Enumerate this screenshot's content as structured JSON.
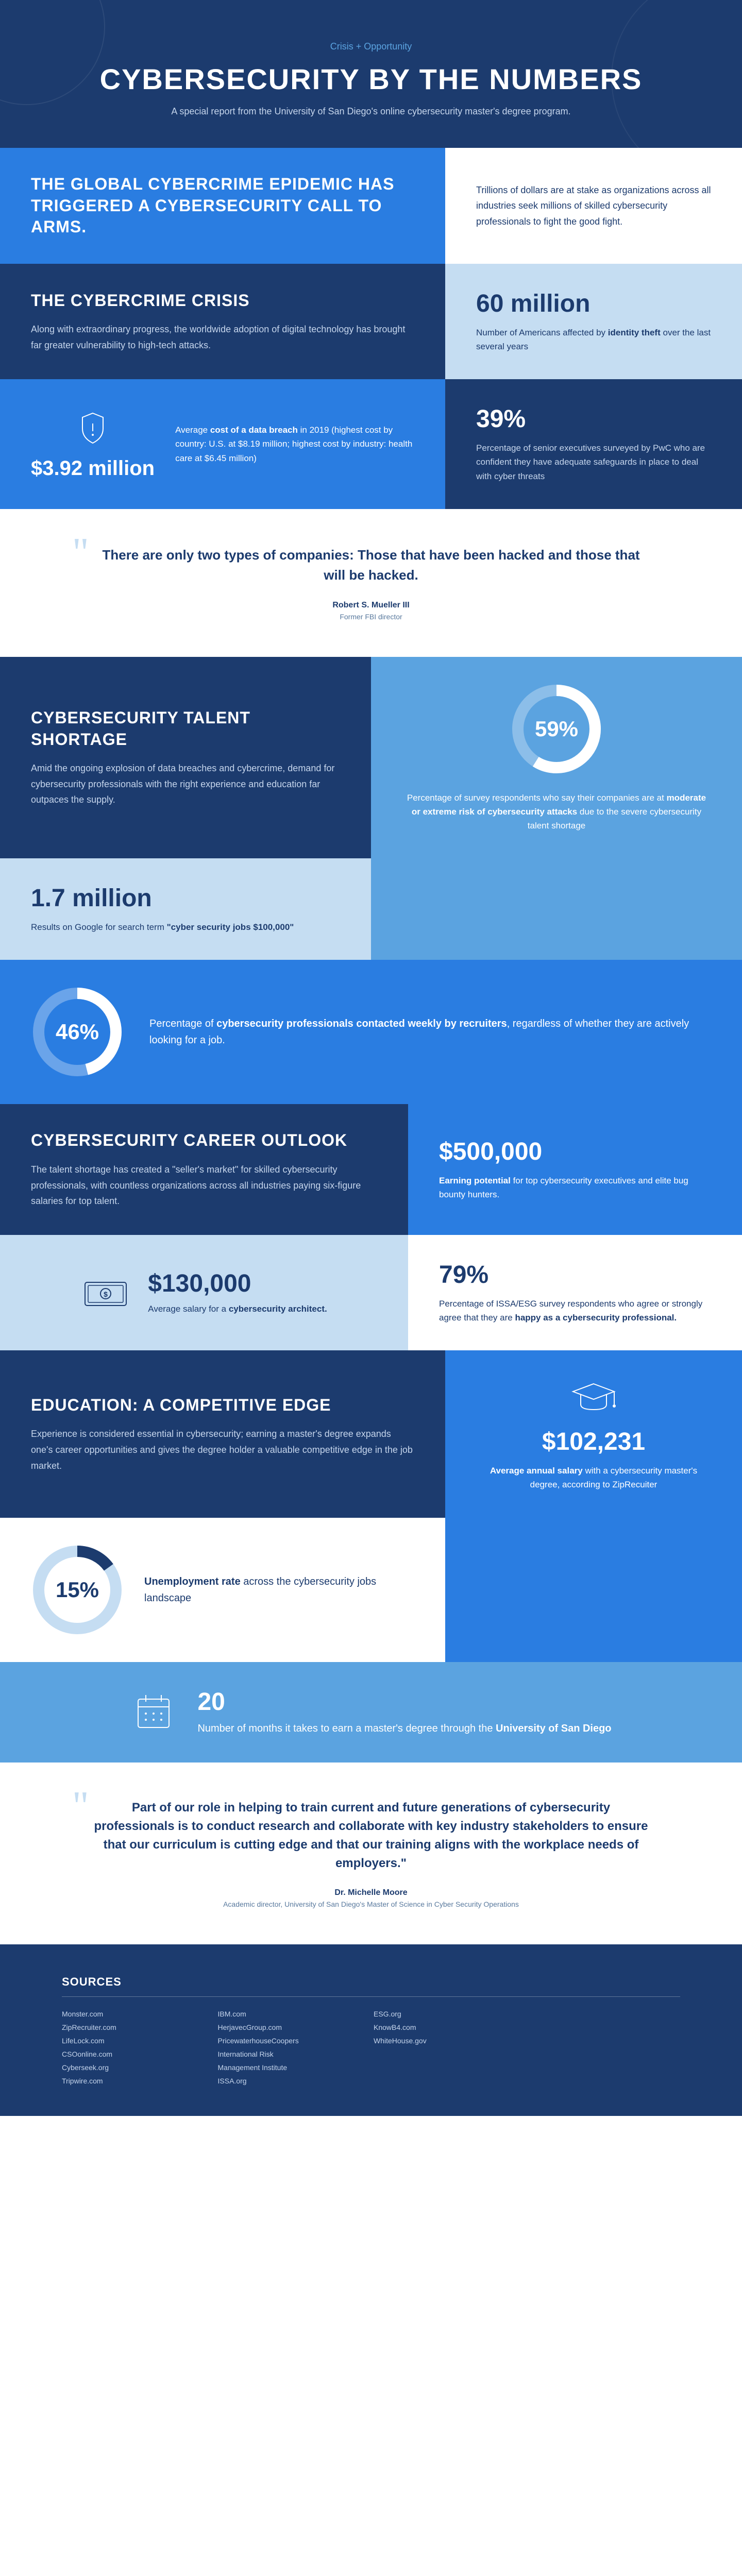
{
  "colors": {
    "navy": "#1c3b6e",
    "bright_blue": "#2a7de1",
    "mid_blue": "#5ba3e0",
    "light_blue": "#c5ddf2",
    "white": "#ffffff",
    "text_light": "#c5d5ec"
  },
  "header": {
    "eyebrow": "Crisis + Opportunity",
    "title": "CYBERSECURITY BY THE NUMBERS",
    "subtitle": "A special report from the University of San Diego's online cybersecurity master's degree program."
  },
  "intro": {
    "headline": "THE GLOBAL CYBERCRIME EPIDEMIC HAS TRIGGERED A CYBERSECURITY CALL TO ARMS.",
    "body": "Trillions of dollars are at stake as organizations across all industries seek millions of skilled cybersecurity professionals to fight the good fight."
  },
  "crisis": {
    "title": "THE CYBERCRIME CRISIS",
    "body": "Along with extraordinary progress, the worldwide adoption of digital technology has brought far greater vulnerability to high-tech attacks.",
    "stat1_num": "60 million",
    "stat1_desc_pre": "Number of Americans affected by ",
    "stat1_desc_bold": "identity theft",
    "stat1_desc_post": " over the last several years",
    "breach_num": "$3.92 million",
    "breach_desc_pre": "Average ",
    "breach_desc_bold": "cost of a data breach",
    "breach_desc_post": " in 2019 (highest cost by country: U.S. at $8.19 million; highest cost by industry: health care at $6.45 million)",
    "stat2_num": "39%",
    "stat2_desc": "Percentage of senior executives surveyed by PwC who are confident they have adequate safeguards in place to deal with cyber threats"
  },
  "quote1": {
    "text": "There are only two types of companies: Those that have been hacked and those that will be hacked.",
    "author": "Robert S. Mueller III",
    "role": "Former FBI director"
  },
  "shortage": {
    "title": "CYBERSECURITY TALENT SHORTAGE",
    "body": "Amid the ongoing explosion of data breaches and cybercrime, demand for cybersecurity professionals with the right experience and education far outpaces the supply.",
    "donut1_pct": 59,
    "donut1_label": "59%",
    "donut1_desc_pre": "Percentage of survey respondents who say their companies are at ",
    "donut1_desc_bold": "moderate or extreme risk of cybersecurity attacks",
    "donut1_desc_post": " due to the severe cybersecurity talent shortage",
    "google_num": "1.7 million",
    "google_desc_pre": "Results on Google for search term ",
    "google_desc_bold": "\"cyber security jobs $100,000\"",
    "donut2_pct": 46,
    "donut2_label": "46%",
    "donut2_desc_pre": "Percentage of ",
    "donut2_desc_bold": "cybersecurity professionals contacted weekly by recruiters",
    "donut2_desc_post": ", regardless of whether they are actively looking for a job."
  },
  "career": {
    "title": "CYBERSECURITY CAREER OUTLOOK",
    "body": "The talent shortage has created a \"seller's market\" for skilled cybersecurity professionals, with countless organizations across all industries paying six-figure salaries for top talent.",
    "earning_num": "$500,000",
    "earning_desc_bold": "Earning potential",
    "earning_desc_post": " for top cybersecurity executives and elite bug bounty hunters.",
    "salary_num": "$130,000",
    "salary_desc_pre": "Average salary for a ",
    "salary_desc_bold": "cybersecurity architect.",
    "happy_num": "79%",
    "happy_desc_pre": "Percentage of ISSA/ESG survey respondents who agree or strongly agree that they are ",
    "happy_desc_bold": "happy as a cybersecurity professional."
  },
  "education": {
    "title": "EDUCATION: A COMPETITIVE EDGE",
    "body": "Experience is considered essential in cybersecurity; earning a master's degree expands one's career opportunities and gives the degree holder a valuable competitive edge in the job market.",
    "salary_num": "$102,231",
    "salary_desc_bold": "Average annual salary",
    "salary_desc_post": " with a cybersecurity master's degree, according to ZipRecuiter",
    "unemp_pct": 15,
    "unemp_label": "15%",
    "unemp_desc_bold": "Unemployment rate",
    "unemp_desc_post": " across the cybersecurity jobs landscape",
    "months_num": "20",
    "months_desc_pre": "Number of months it takes to earn a master's degree through the ",
    "months_desc_bold": "University of San Diego"
  },
  "quote2": {
    "text": "Part of our role in helping to train current and future generations of cybersecurity professionals is to conduct research and collaborate with key industry stakeholders to ensure that our curriculum is cutting edge and that our training aligns with the workplace needs of employers.\"",
    "author": "Dr. Michelle Moore",
    "role": "Academic director, University of San Diego's Master of Science in Cyber Security Operations"
  },
  "sources": {
    "title": "SOURCES",
    "items": [
      "Monster.com",
      "IBM.com",
      "ESG.org",
      "",
      "ZipRecruiter.com",
      "HerjavecGroup.com",
      "KnowB4.com",
      "",
      "LifeLock.com",
      "PricewaterhouseCoopers",
      "WhiteHouse.gov",
      "",
      "CSOonline.com",
      "International Risk",
      "",
      "",
      "Cyberseek.org",
      "Management Institute",
      "",
      "",
      "Tripwire.com",
      "ISSA.org",
      "",
      ""
    ]
  }
}
